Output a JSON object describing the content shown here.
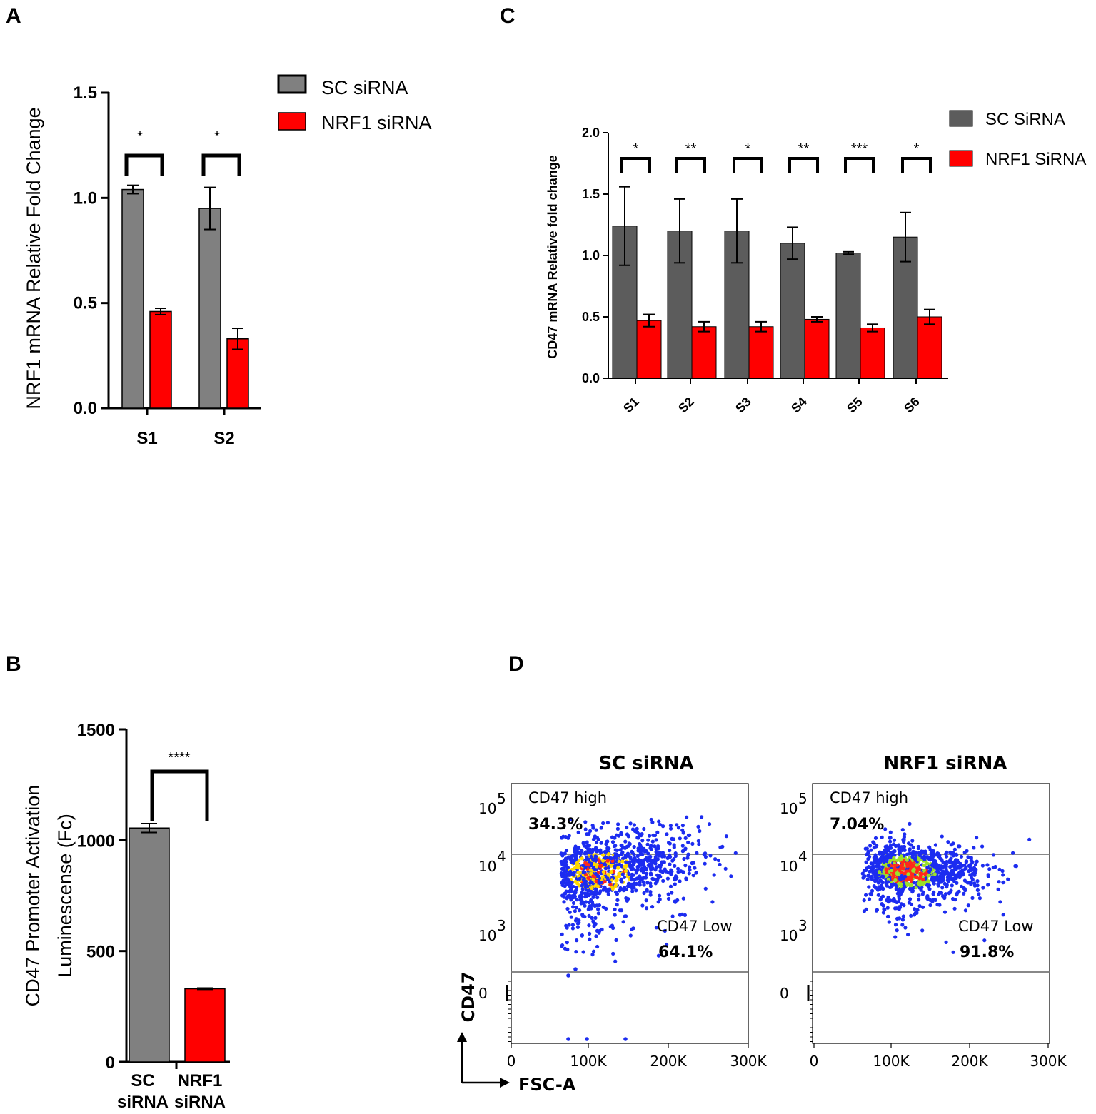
{
  "panels": {
    "A": "A",
    "B": "B",
    "C": "C",
    "D": "D"
  },
  "colors": {
    "sc": "#808080",
    "sc_dark": "#5c5c5c",
    "nrf1": "#ff0000",
    "blue": "#1c2cf0",
    "yellow": "#ffd800",
    "red": "#ff2a1a",
    "green": "#9be02a"
  },
  "chart_data": [
    {
      "id": "A",
      "type": "bar",
      "ylabel": "NRF1 mRNA Relative Fold Change",
      "categories": [
        "S1",
        "S2"
      ],
      "ylim": [
        0,
        1.5
      ],
      "yticks": [
        "0.0",
        "0.5",
        "1.0",
        "1.5"
      ],
      "legend": [
        "SC siRNA",
        "NRF1 siRNA"
      ],
      "series": [
        {
          "name": "SC siRNA",
          "values": [
            1.04,
            0.95
          ],
          "errors": [
            0.02,
            0.1
          ]
        },
        {
          "name": "NRF1 siRNA",
          "values": [
            0.46,
            0.33
          ],
          "errors": [
            0.015,
            0.05
          ]
        }
      ],
      "significance": [
        "*",
        "*"
      ]
    },
    {
      "id": "B",
      "type": "bar",
      "ylabel": [
        "CD47 Promoter Activation",
        "Luminescense (Fc)"
      ],
      "categories": [
        [
          "SC",
          "siRNA"
        ],
        [
          "NRF1",
          "siRNA"
        ]
      ],
      "ylim": [
        0,
        1500
      ],
      "yticks": [
        "0",
        "500",
        "1000",
        "1500"
      ],
      "values": [
        1055,
        330
      ],
      "errors": [
        20,
        3
      ],
      "significance": "****"
    },
    {
      "id": "C",
      "type": "bar",
      "ylabel": "CD47 mRNA Relative fold change",
      "categories": [
        "S1",
        "S2",
        "S3",
        "S4",
        "S5",
        "S6"
      ],
      "ylim": [
        0,
        2.0
      ],
      "yticks": [
        "0.0",
        "0.5",
        "1.0",
        "1.5",
        "2.0"
      ],
      "legend": [
        "SC SiRNA",
        "NRF1 SiRNA"
      ],
      "series": [
        {
          "name": "SC SiRNA",
          "values": [
            1.24,
            1.2,
            1.2,
            1.1,
            1.02,
            1.15
          ],
          "errors": [
            0.32,
            0.26,
            0.26,
            0.13,
            0.01,
            0.2
          ]
        },
        {
          "name": "NRF1 SiRNA",
          "values": [
            0.47,
            0.42,
            0.42,
            0.48,
            0.41,
            0.5
          ],
          "errors": [
            0.05,
            0.04,
            0.04,
            0.02,
            0.03,
            0.06
          ]
        }
      ],
      "significance": [
        "*",
        "**",
        "*",
        "**",
        "***",
        "*"
      ]
    },
    {
      "id": "D",
      "type": "scatter",
      "xlabel": "FSC-A",
      "ylabel": "CD47",
      "xticks": [
        "0",
        "100K",
        "200K",
        "300K"
      ],
      "yticks": [
        "0",
        "10",
        "10",
        "10"
      ],
      "yticks_exp": [
        "",
        "3",
        "4",
        "5"
      ],
      "plots": [
        {
          "title": "SC siRNA",
          "gates": [
            {
              "name": "CD47 high",
              "percent": "34.3%"
            },
            {
              "name": "CD47 Low",
              "percent": "64.1%"
            }
          ]
        },
        {
          "title": "NRF1 siRNA",
          "gates": [
            {
              "name": "CD47 high",
              "percent": "7.04%"
            },
            {
              "name": "CD47 Low",
              "percent": "91.8%"
            }
          ]
        }
      ]
    }
  ]
}
